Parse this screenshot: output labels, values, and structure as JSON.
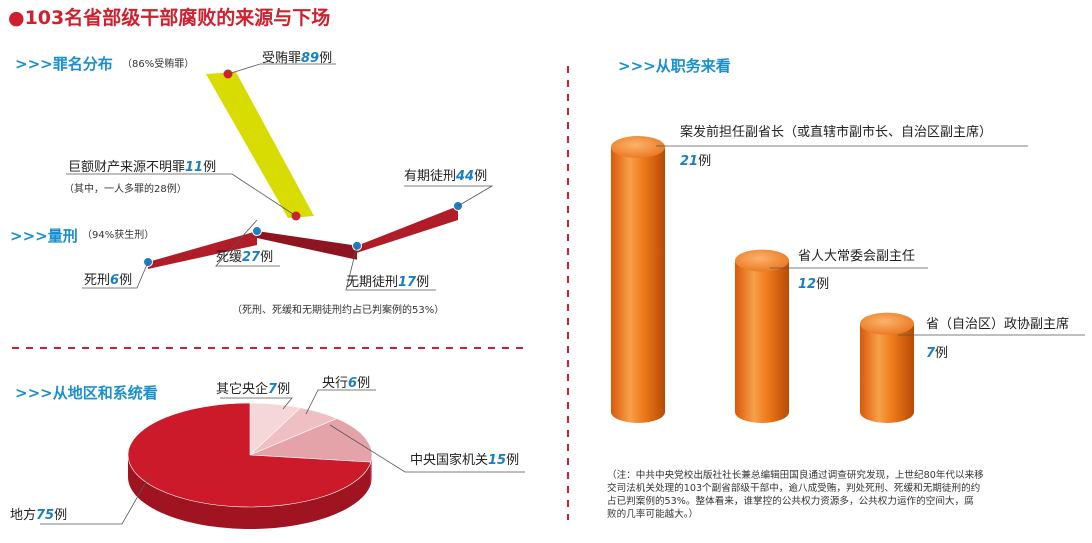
{
  "title": "●103名省部级干部腐败的来源与下场",
  "sections": {
    "crime": {
      "heading": ">>>罪名分布",
      "sub": "（86%受贿罪）"
    },
    "sentence": {
      "heading": ">>>量刑",
      "sub": "（94%获生刑）"
    },
    "region": {
      "heading": ">>>从地区和系统看"
    },
    "position": {
      "heading": ">>>从职务来看"
    }
  },
  "unit": "例",
  "notes": {
    "crime_extra": "（其中，一人多罪的28例）",
    "sentence_extra": "（死刑、死缓和无期徒刑约占已判案例的53%）",
    "footnote_lines": [
      "（注：中共中央党校出版社社长兼总编辑田国良通过调查研究发现，上世纪80年代以来移",
      "交司法机关处理的103个副省部级干部中，逾八成受贿，判处死刑、死缓和无期徒刑的约",
      "占已判案例的53%。整体看来，谁掌控的公共权力资源多，公共权力运作的空间大，腐",
      "败的几率可能越大。）"
    ]
  },
  "colors": {
    "accent": "#d0202e",
    "blue": "#1a7fc4",
    "ribbon": "#b01c28",
    "yellow": "#d8dc00",
    "orange": "#ee7a1a",
    "pie_main": "#cc1a2a",
    "pie_light": "#e89aa0"
  },
  "chart_data": [
    {
      "type": "bar",
      "id": "crime",
      "categories": [
        "受贿罪",
        "巨额财产来源不明罪"
      ],
      "values": [
        89,
        11
      ]
    },
    {
      "type": "line",
      "id": "sentence",
      "categories": [
        "死刑",
        "死缓",
        "无期徒刑",
        "有期徒刑"
      ],
      "values": [
        6,
        27,
        17,
        44
      ]
    },
    {
      "type": "pie",
      "id": "region",
      "categories": [
        "地方",
        "中央国家机关",
        "央行",
        "其它央企"
      ],
      "values": [
        75,
        15,
        6,
        7
      ]
    },
    {
      "type": "bar",
      "id": "position",
      "categories": [
        "案发前担任副省长（或直辖市副市长、自治区副主席）",
        "省人大常委会副主任",
        "省（自治区）政协副主席"
      ],
      "values": [
        21,
        12,
        7
      ]
    }
  ]
}
